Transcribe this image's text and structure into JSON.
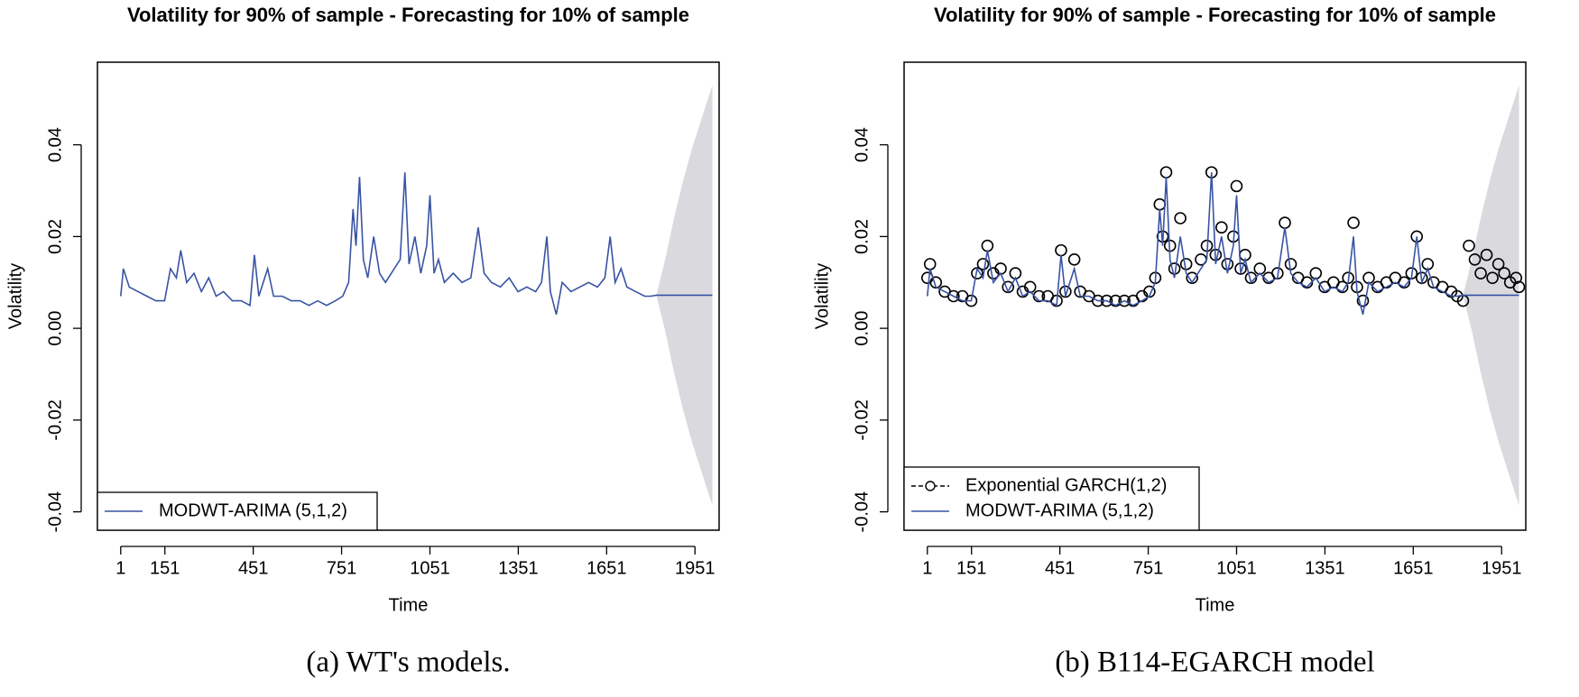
{
  "chart_data": [
    {
      "type": "line",
      "title": "Volatility for 90% of sample - Forecasting for 10% of sample",
      "xlabel": "Time",
      "ylabel": "Volatility",
      "caption": "(a) WT's models.",
      "xlim": [
        -78,
        2033
      ],
      "ylim": [
        -0.044,
        0.058
      ],
      "xticks": [
        1,
        151,
        451,
        751,
        1051,
        1351,
        1651,
        1951
      ],
      "yticks": [
        -0.04,
        -0.02,
        {
          "value": 0,
          "label": "0.00"
        },
        0.02,
        0.04
      ],
      "legend": "bottom-left",
      "band": {
        "color": "#d9d9de",
        "x": [
          1820,
          1850,
          1880,
          1910,
          1940,
          1970,
          2000,
          2010
        ],
        "upper": [
          0.0072,
          0.015,
          0.024,
          0.032,
          0.039,
          0.045,
          0.051,
          0.053
        ],
        "lower": [
          0.0072,
          -0.0006,
          -0.0096,
          -0.0176,
          -0.0246,
          -0.0306,
          -0.0366,
          -0.0386
        ]
      },
      "series": [
        {
          "name": "MODWT-ARIMA (5,1,2)",
          "color": "#3953a4",
          "marker": "none",
          "linestyle": "solid",
          "x": [
            1,
            10,
            30,
            60,
            90,
            120,
            150,
            170,
            190,
            205,
            225,
            250,
            275,
            300,
            325,
            350,
            380,
            410,
            440,
            455,
            470,
            500,
            520,
            550,
            580,
            610,
            640,
            670,
            700,
            730,
            755,
            775,
            790,
            800,
            812,
            825,
            840,
            860,
            880,
            900,
            930,
            950,
            966,
            980,
            1000,
            1020,
            1040,
            1051,
            1065,
            1080,
            1100,
            1130,
            1160,
            1190,
            1215,
            1235,
            1260,
            1290,
            1320,
            1350,
            1380,
            1410,
            1430,
            1448,
            1460,
            1480,
            1500,
            1530,
            1560,
            1590,
            1620,
            1645,
            1663,
            1680,
            1700,
            1720,
            1750,
            1780,
            1800,
            1820,
            1850,
            1900,
            1950,
            2010
          ],
          "values": [
            0.007,
            0.013,
            0.009,
            0.008,
            0.007,
            0.006,
            0.006,
            0.013,
            0.011,
            0.017,
            0.01,
            0.012,
            0.008,
            0.011,
            0.007,
            0.008,
            0.006,
            0.006,
            0.005,
            0.016,
            0.007,
            0.013,
            0.007,
            0.007,
            0.006,
            0.006,
            0.005,
            0.006,
            0.005,
            0.006,
            0.007,
            0.01,
            0.026,
            0.018,
            0.033,
            0.015,
            0.011,
            0.02,
            0.012,
            0.01,
            0.013,
            0.015,
            0.034,
            0.014,
            0.02,
            0.012,
            0.018,
            0.029,
            0.012,
            0.015,
            0.01,
            0.012,
            0.01,
            0.011,
            0.022,
            0.012,
            0.01,
            0.009,
            0.011,
            0.008,
            0.009,
            0.008,
            0.01,
            0.02,
            0.008,
            0.003,
            0.01,
            0.008,
            0.009,
            0.01,
            0.009,
            0.011,
            0.02,
            0.01,
            0.013,
            0.009,
            0.008,
            0.007,
            0.007,
            0.0072,
            0.0072,
            0.0072,
            0.0072,
            0.0072
          ]
        }
      ]
    },
    {
      "type": "line",
      "title": "Volatility for 90% of sample - Forecasting for 10% of sample",
      "xlabel": "Time",
      "ylabel": "Volatility",
      "caption": "(b) B114-EGARCH model",
      "xlim": [
        -78,
        2033
      ],
      "ylim": [
        -0.044,
        0.058
      ],
      "xticks": [
        1,
        151,
        451,
        751,
        1051,
        1351,
        1651,
        1951
      ],
      "yticks": [
        -0.04,
        -0.02,
        {
          "value": 0,
          "label": "0.00"
        },
        0.02,
        0.04
      ],
      "legend": "bottom-left",
      "band": {
        "color": "#d9d9de",
        "x": [
          1820,
          1850,
          1880,
          1910,
          1940,
          1970,
          2000,
          2010
        ],
        "upper": [
          0.0072,
          0.015,
          0.024,
          0.032,
          0.039,
          0.045,
          0.051,
          0.053
        ],
        "lower": [
          0.0072,
          -0.0006,
          -0.0096,
          -0.0176,
          -0.0246,
          -0.0306,
          -0.0366,
          -0.0386
        ]
      },
      "series": [
        {
          "name": "Exponential GARCH(1,2)",
          "color": "#000000",
          "marker": "circle",
          "linestyle": "dashed",
          "x": [
            1,
            10,
            30,
            60,
            90,
            120,
            150,
            170,
            190,
            205,
            225,
            250,
            275,
            300,
            325,
            350,
            380,
            410,
            440,
            455,
            470,
            500,
            520,
            550,
            580,
            610,
            640,
            670,
            700,
            730,
            755,
            775,
            790,
            800,
            812,
            825,
            840,
            860,
            880,
            900,
            930,
            950,
            966,
            980,
            1000,
            1020,
            1040,
            1051,
            1065,
            1080,
            1100,
            1130,
            1160,
            1190,
            1215,
            1235,
            1260,
            1290,
            1320,
            1350,
            1380,
            1410,
            1430,
            1448,
            1460,
            1480,
            1500,
            1530,
            1560,
            1590,
            1620,
            1645,
            1663,
            1680,
            1700,
            1720,
            1750,
            1780,
            1800,
            1820,
            1840,
            1860,
            1880,
            1900,
            1920,
            1940,
            1960,
            1980,
            2000,
            2010
          ],
          "values": [
            0.011,
            0.014,
            0.01,
            0.008,
            0.007,
            0.007,
            0.006,
            0.012,
            0.014,
            0.018,
            0.012,
            0.013,
            0.009,
            0.012,
            0.008,
            0.009,
            0.007,
            0.007,
            0.006,
            0.017,
            0.008,
            0.015,
            0.008,
            0.007,
            0.006,
            0.006,
            0.006,
            0.006,
            0.006,
            0.007,
            0.008,
            0.011,
            0.027,
            0.02,
            0.034,
            0.018,
            0.013,
            0.024,
            0.014,
            0.011,
            0.015,
            0.018,
            0.034,
            0.016,
            0.022,
            0.014,
            0.02,
            0.031,
            0.013,
            0.016,
            0.011,
            0.013,
            0.011,
            0.012,
            0.023,
            0.014,
            0.011,
            0.01,
            0.012,
            0.009,
            0.01,
            0.009,
            0.011,
            0.023,
            0.009,
            0.006,
            0.011,
            0.009,
            0.01,
            0.011,
            0.01,
            0.012,
            0.02,
            0.011,
            0.014,
            0.01,
            0.009,
            0.008,
            0.007,
            0.006,
            0.018,
            0.015,
            0.012,
            0.016,
            0.011,
            0.014,
            0.012,
            0.01,
            0.011,
            0.009
          ]
        },
        {
          "name": "MODWT-ARIMA (5,1,2)",
          "color": "#3953a4",
          "marker": "none",
          "linestyle": "solid",
          "x": [
            1,
            10,
            30,
            60,
            90,
            120,
            150,
            170,
            190,
            205,
            225,
            250,
            275,
            300,
            325,
            350,
            380,
            410,
            440,
            455,
            470,
            500,
            520,
            550,
            580,
            610,
            640,
            670,
            700,
            730,
            755,
            775,
            790,
            800,
            812,
            825,
            840,
            860,
            880,
            900,
            930,
            950,
            966,
            980,
            1000,
            1020,
            1040,
            1051,
            1065,
            1080,
            1100,
            1130,
            1160,
            1190,
            1215,
            1235,
            1260,
            1290,
            1320,
            1350,
            1380,
            1410,
            1430,
            1448,
            1460,
            1480,
            1500,
            1530,
            1560,
            1590,
            1620,
            1645,
            1663,
            1680,
            1700,
            1720,
            1750,
            1780,
            1800,
            1820,
            1850,
            1900,
            1950,
            2010
          ],
          "values": [
            0.007,
            0.013,
            0.009,
            0.008,
            0.007,
            0.006,
            0.006,
            0.013,
            0.011,
            0.017,
            0.01,
            0.012,
            0.008,
            0.011,
            0.007,
            0.008,
            0.006,
            0.006,
            0.005,
            0.016,
            0.007,
            0.013,
            0.007,
            0.007,
            0.006,
            0.006,
            0.005,
            0.006,
            0.005,
            0.006,
            0.007,
            0.01,
            0.026,
            0.018,
            0.033,
            0.015,
            0.011,
            0.02,
            0.012,
            0.01,
            0.013,
            0.015,
            0.034,
            0.014,
            0.02,
            0.012,
            0.018,
            0.029,
            0.012,
            0.015,
            0.01,
            0.012,
            0.01,
            0.011,
            0.022,
            0.012,
            0.01,
            0.009,
            0.011,
            0.008,
            0.009,
            0.008,
            0.01,
            0.02,
            0.008,
            0.003,
            0.01,
            0.008,
            0.009,
            0.01,
            0.009,
            0.011,
            0.02,
            0.01,
            0.013,
            0.009,
            0.008,
            0.007,
            0.007,
            0.0072,
            0.0072,
            0.0072,
            0.0072,
            0.0072
          ]
        }
      ]
    }
  ]
}
